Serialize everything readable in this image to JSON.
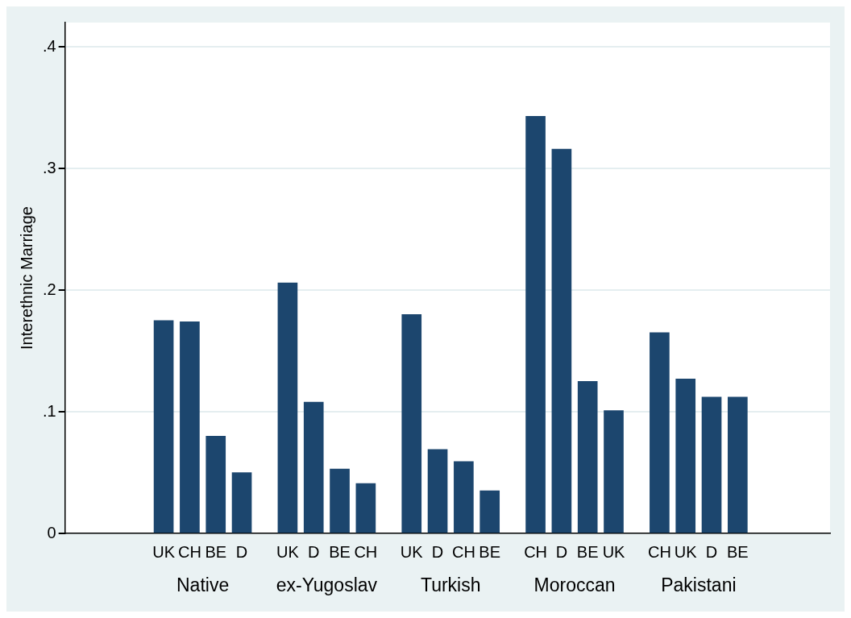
{
  "chart_data": {
    "type": "bar",
    "ylabel": "Interethnic Marriage",
    "categories": [
      "UK",
      "CH",
      "BE",
      "D",
      "UK",
      "D",
      "BE",
      "CH",
      "UK",
      "D",
      "CH",
      "BE",
      "CH",
      "D",
      "BE",
      "UK",
      "CH",
      "UK",
      "D",
      "BE"
    ],
    "values": [
      0.175,
      0.174,
      0.08,
      0.05,
      0.206,
      0.108,
      0.053,
      0.041,
      0.18,
      0.069,
      0.059,
      0.035,
      0.343,
      0.316,
      0.125,
      0.101,
      0.165,
      0.127,
      0.112,
      0.112
    ],
    "color": "#1c466e",
    "annotations": [
      "Native",
      "ex-Yugoslav",
      "Turkish",
      "Moroccan",
      "Pakistani"
    ],
    "ylim": [
      0,
      0.42
    ],
    "yticks": [
      0,
      {
        "value": 0.1,
        "label": ".1"
      },
      {
        "value": 0.2,
        "label": ".2"
      },
      {
        "value": 0.3,
        "label": ".3"
      },
      {
        "value": 0.4,
        "label": ".4"
      }
    ],
    "grid": "y",
    "legend": false
  }
}
